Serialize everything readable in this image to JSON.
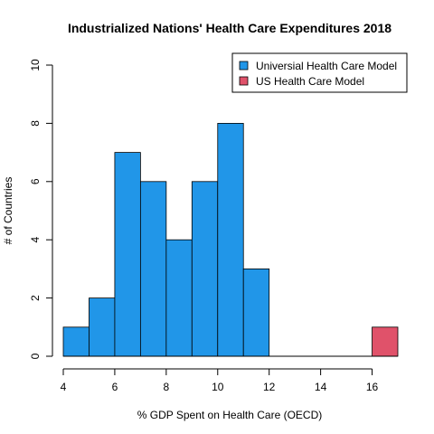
{
  "chart_data": {
    "type": "bar",
    "title": "Industrialized Nations' Health Care Expenditures 2018",
    "xlabel": "% GDP Spent on Health Care (OECD)",
    "ylabel": "# of Countries",
    "xlim": [
      4,
      17
    ],
    "ylim": [
      0,
      10
    ],
    "x_ticks": [
      4,
      6,
      8,
      10,
      12,
      14,
      16
    ],
    "y_ticks": [
      0,
      2,
      4,
      6,
      8,
      10
    ],
    "bin_width": 1,
    "legend_position": "top-right",
    "series": [
      {
        "name": "Universial Health Care Model",
        "color": "#2196E8",
        "bins": [
          4,
          5,
          6,
          7,
          8,
          9,
          10,
          11
        ],
        "values": [
          1,
          2,
          7,
          6,
          4,
          6,
          8,
          3
        ]
      },
      {
        "name": "US Health Care Model",
        "color": "#E0526A",
        "bins": [
          16
        ],
        "values": [
          1
        ]
      }
    ]
  }
}
